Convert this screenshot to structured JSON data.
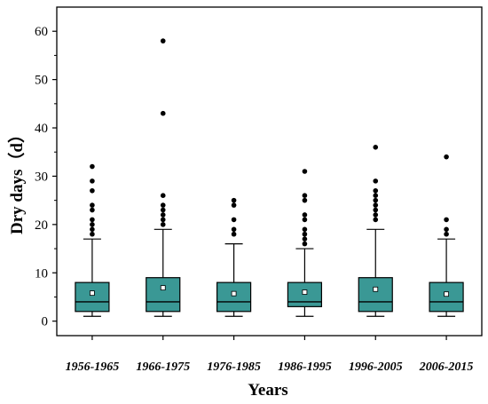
{
  "chart_data": {
    "type": "box",
    "xlabel": "Years",
    "ylabel": "Dry days（d）",
    "ylim": [
      -3,
      65
    ],
    "yticks": [
      0,
      10,
      20,
      30,
      40,
      50,
      60
    ],
    "grid": false,
    "box_color": "#3a9895",
    "categories": [
      "1956-1965",
      "1966-1975",
      "1976-1985",
      "1986-1995",
      "1996-2005",
      "2006-2015"
    ],
    "boxes": [
      {
        "category": "1956-1965",
        "whisker_low": 1,
        "q1": 2,
        "median": 4,
        "mean": 5.8,
        "q3": 8,
        "whisker_high": 17,
        "outliers": [
          18,
          19,
          20,
          21,
          23,
          24,
          27,
          29,
          32
        ]
      },
      {
        "category": "1966-1975",
        "whisker_low": 1,
        "q1": 2,
        "median": 4,
        "mean": 6.9,
        "q3": 9,
        "whisker_high": 19,
        "outliers": [
          20,
          21,
          22,
          23,
          24,
          26,
          43,
          58
        ]
      },
      {
        "category": "1976-1985",
        "whisker_low": 1,
        "q1": 2,
        "median": 4,
        "mean": 5.7,
        "q3": 8,
        "whisker_high": 16,
        "outliers": [
          18,
          19,
          21,
          24,
          25
        ]
      },
      {
        "category": "1986-1995",
        "whisker_low": 1,
        "q1": 3,
        "median": 4,
        "mean": 6.0,
        "q3": 8,
        "whisker_high": 15,
        "outliers": [
          16,
          17,
          18,
          19,
          21,
          22,
          25,
          26,
          31
        ]
      },
      {
        "category": "1996-2005",
        "whisker_low": 1,
        "q1": 2,
        "median": 4,
        "mean": 6.6,
        "q3": 9,
        "whisker_high": 19,
        "outliers": [
          21,
          22,
          23,
          24,
          25,
          26,
          27,
          29,
          36
        ]
      },
      {
        "category": "2006-2015",
        "whisker_low": 1,
        "q1": 2,
        "median": 4,
        "mean": 5.6,
        "q3": 8,
        "whisker_high": 17,
        "outliers": [
          18,
          19,
          21,
          34
        ]
      }
    ]
  }
}
